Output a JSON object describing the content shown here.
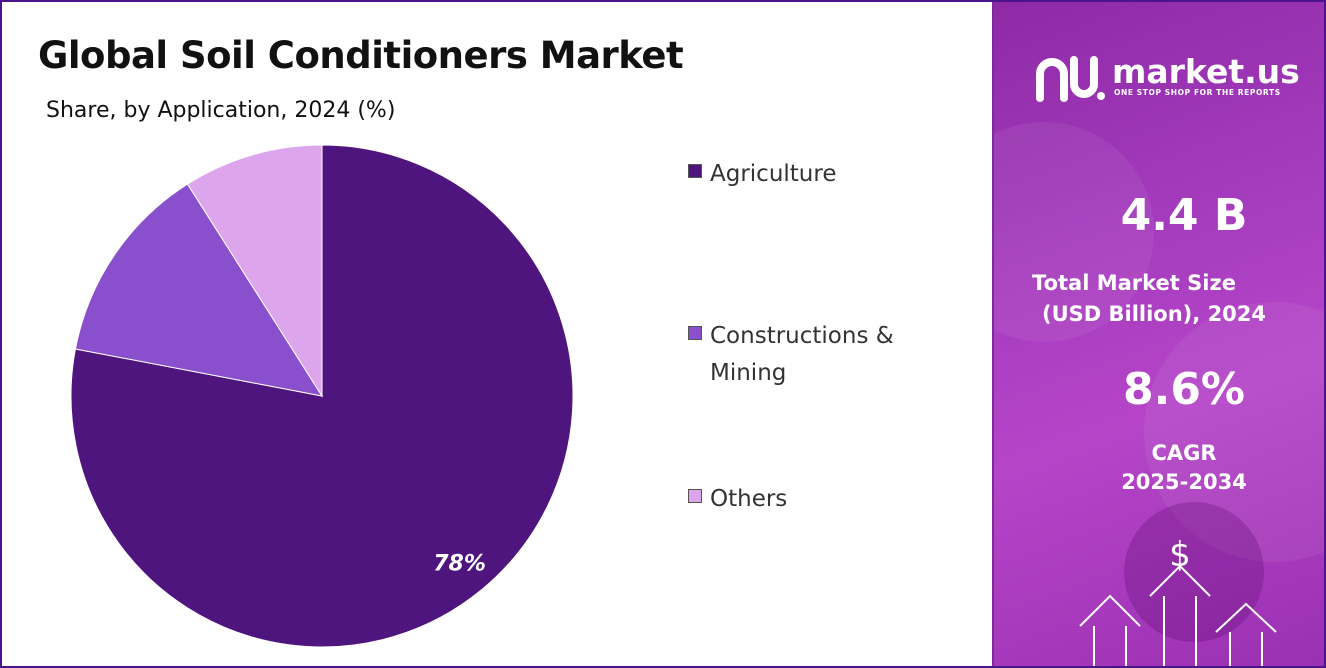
{
  "header": {
    "title": "Global Soil Conditioners Market",
    "subtitle": "Share, by Application, 2024 (%)"
  },
  "chart_data": {
    "type": "pie",
    "title": "Global Soil Conditioners Market",
    "subtitle": "Share, by Application, 2024 (%)",
    "categories": [
      "Agriculture",
      "Constructions & Mining",
      "Others"
    ],
    "values": [
      78,
      13,
      9
    ],
    "colors": [
      "#4f157f",
      "#8a4fcc",
      "#dda6ec"
    ],
    "data_labels": [
      "78%",
      "",
      ""
    ],
    "legend_position": "right"
  },
  "legend": {
    "items": [
      {
        "line1": "Agriculture",
        "line2": ""
      },
      {
        "line1": "Constructions &",
        "line2": "Mining"
      },
      {
        "line1": "Others",
        "line2": ""
      }
    ]
  },
  "brand": {
    "name": "market.us",
    "tagline": "ONE STOP SHOP FOR THE REPORTS"
  },
  "stats": {
    "market_size_value": "4.4 B",
    "market_size_label_1": "Total Market Size",
    "market_size_label_2": "(USD Billion), 2024",
    "cagr_value": "8.6%",
    "cagr_label_1": "CAGR",
    "cagr_label_2": "2025-2034"
  },
  "icons": {
    "currency_symbol": "$"
  }
}
